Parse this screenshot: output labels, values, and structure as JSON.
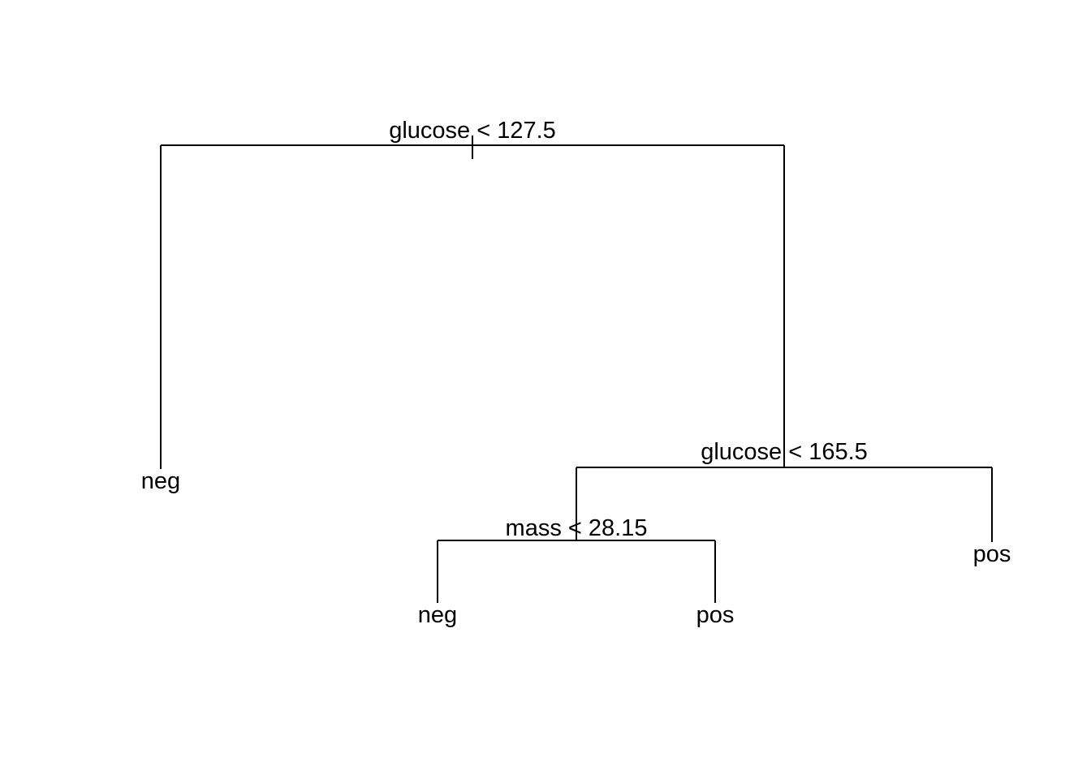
{
  "tree": {
    "splits": {
      "root": "glucose < 127.5",
      "right": "glucose < 165.5",
      "right_left": "mass < 28.15"
    },
    "leaves": {
      "left": "neg",
      "right_left_left": "neg",
      "right_left_right": "pos",
      "right_right": "pos"
    }
  }
}
